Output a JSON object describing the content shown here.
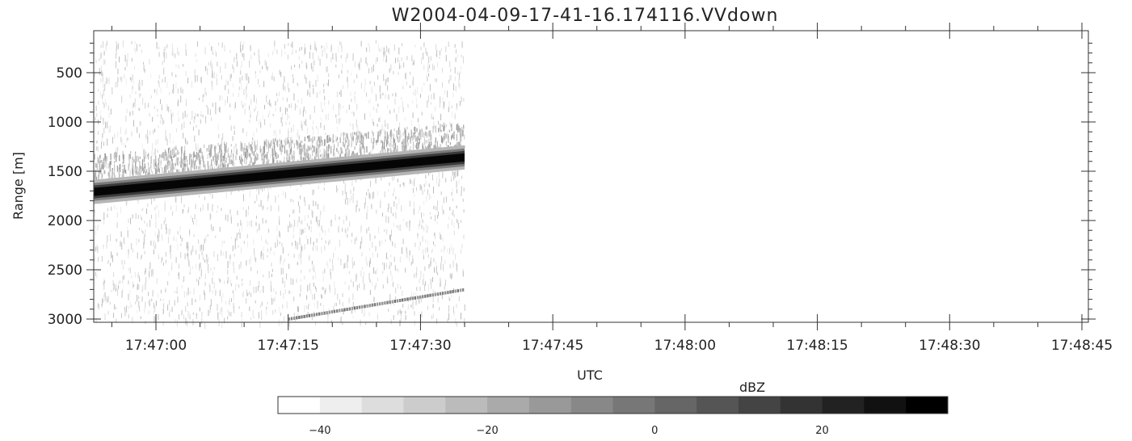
{
  "chart_data": {
    "type": "heatmap",
    "title": "W2004-04-09-17-41-16.174116.VVdown",
    "xlabel": "UTC",
    "ylabel": "Range [m]",
    "x_tick_labels": [
      "17:47:00",
      "17:47:15",
      "17:47:30",
      "17:47:45",
      "17:48:00",
      "17:48:15",
      "17:48:30",
      "17:48:45"
    ],
    "y_tick_labels": [
      "500",
      "1000",
      "1500",
      "2000",
      "2500",
      "3000"
    ],
    "y_ticks": [
      500,
      1000,
      1500,
      2000,
      2500,
      3000
    ],
    "ylim": [
      3050,
      120
    ],
    "data_extent_x": [
      "17:46:53",
      "17:47:35"
    ],
    "features": [
      {
        "kind": "strong echo band",
        "start": {
          "x": "17:46:53",
          "range": 1710
        },
        "end": {
          "x": "17:47:35",
          "range": 1360
        },
        "dbz": 30
      },
      {
        "kind": "weak echo layer",
        "start": {
          "x": "17:46:53",
          "range": 1400
        },
        "end": {
          "x": "17:47:35",
          "range": 1080
        },
        "dbz": -20
      },
      {
        "kind": "multipath echo",
        "start": {
          "x": "17:47:15",
          "range": 3000
        },
        "end": {
          "x": "17:47:35",
          "range": 2700
        },
        "dbz": -10
      }
    ],
    "colorbar": {
      "label": "dBZ",
      "range": [
        -45,
        35
      ],
      "step": 5,
      "tick_labels": [
        "-40",
        "-20",
        "0",
        "20"
      ],
      "colormap": "white-to-black grayscale"
    }
  }
}
